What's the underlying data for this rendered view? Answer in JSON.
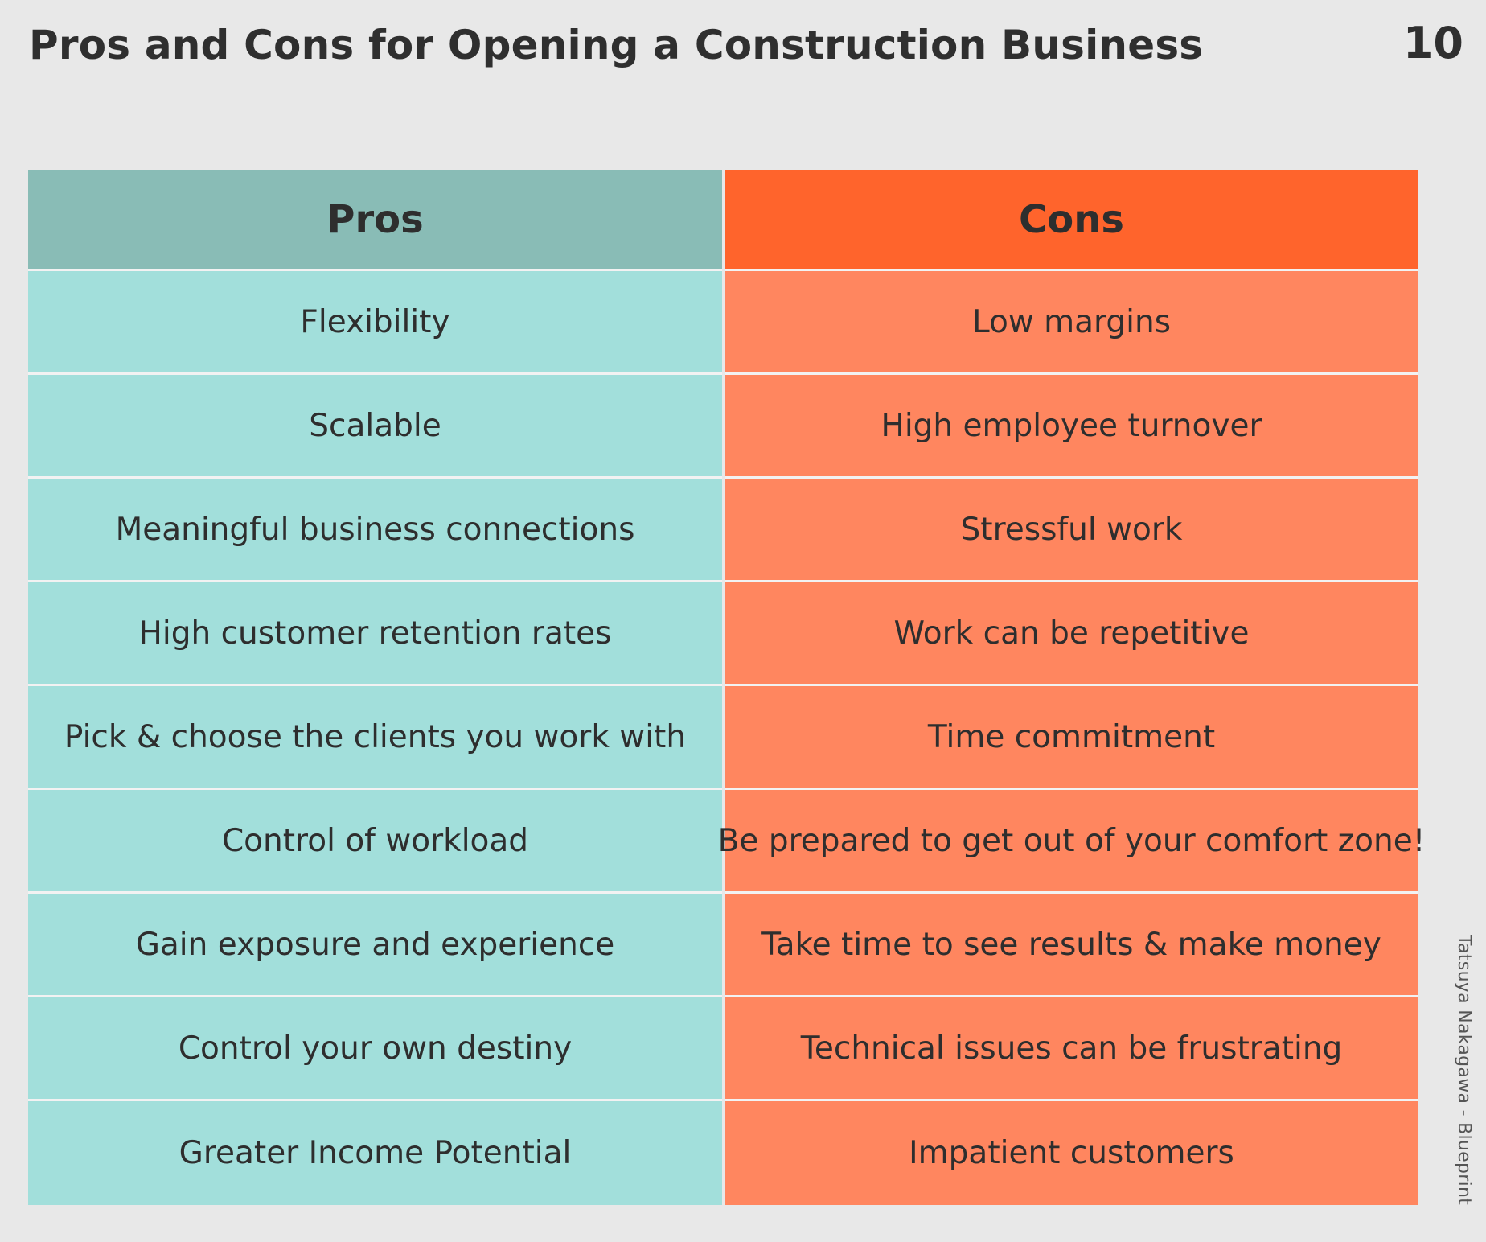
{
  "title": "Pros and Cons for Opening a Construction Business",
  "page_number": "10",
  "colors": {
    "background": "#e8e8e8",
    "pros_header": "#89bcb6",
    "pros_cell": "#a2dfdb",
    "cons_header": "#ff642c",
    "cons_cell": "#ff865f"
  },
  "table": {
    "headers": [
      "Pros",
      "Cons"
    ],
    "rows": [
      [
        "Flexibility",
        "Low margins"
      ],
      [
        "Scalable",
        "High employee turnover"
      ],
      [
        "Meaningful business connections",
        "Stressful work"
      ],
      [
        "High customer retention rates",
        "Work can be repetitive"
      ],
      [
        "Pick & choose the clients you work with",
        "Time commitment"
      ],
      [
        "Control of workload",
        "Be prepared to get out of your comfort zone!"
      ],
      [
        "Gain exposure and experience",
        "Take time to see results & make money"
      ],
      [
        "Control your own destiny",
        "Technical issues can be frustrating"
      ],
      [
        "Greater Income Potential",
        "Impatient customers"
      ]
    ]
  },
  "credit": "Tatsuya Nakagawa - Blueprint"
}
